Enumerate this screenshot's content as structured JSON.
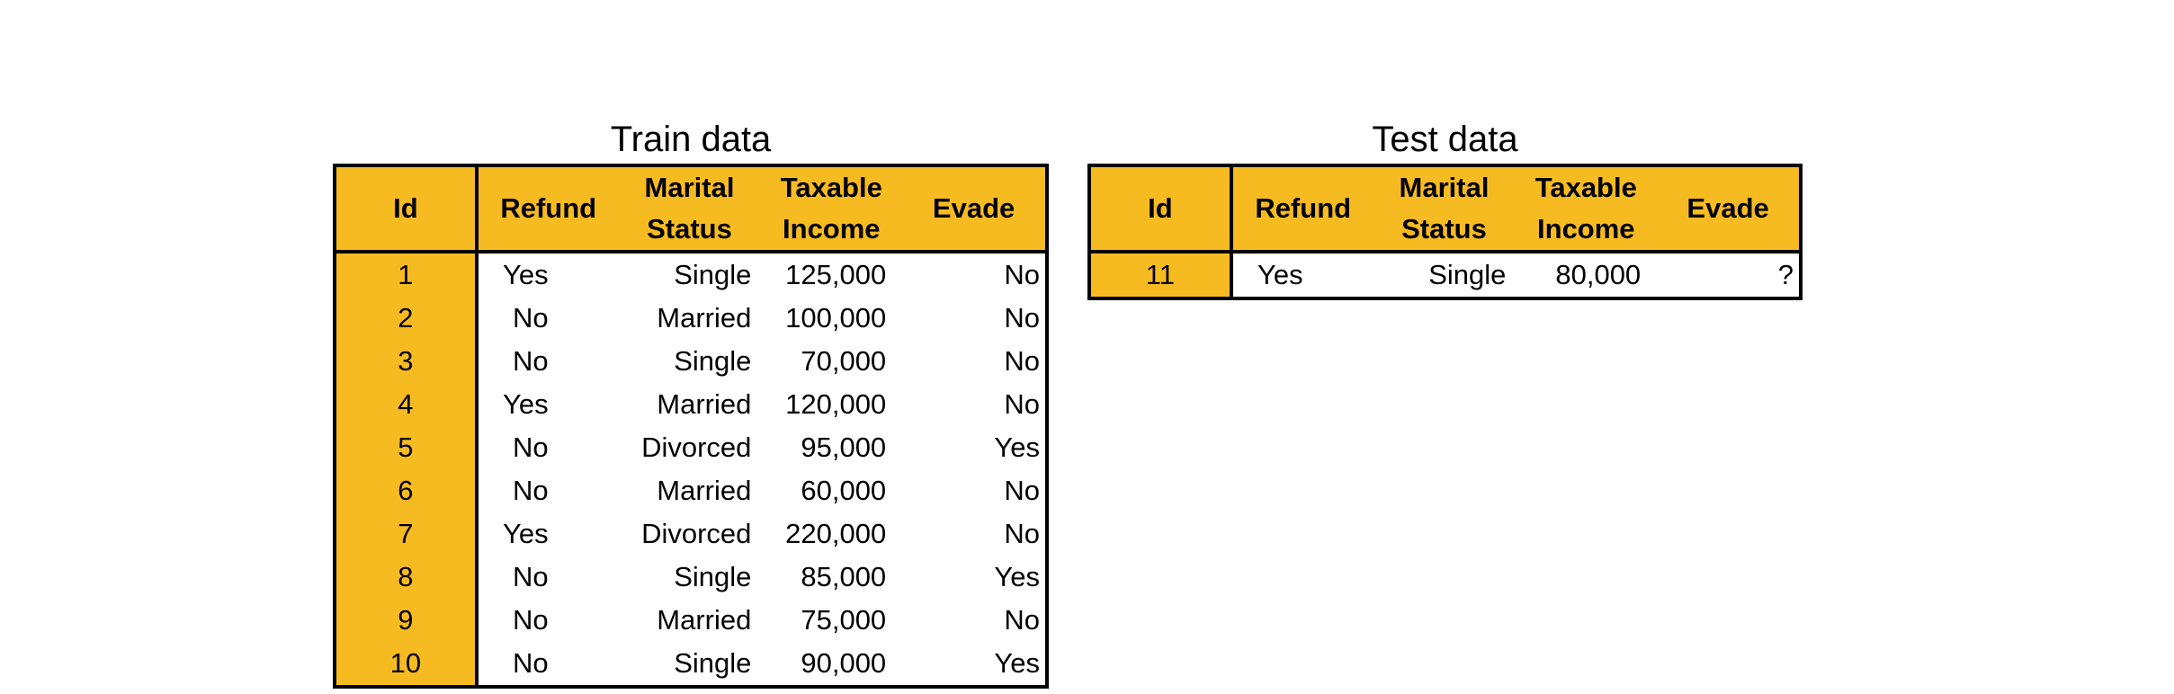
{
  "train": {
    "title": "Train data",
    "headers": {
      "id": "Id",
      "refund": "Refund",
      "marital_line1": "Marital",
      "marital_line2": "Status",
      "income_line1": "Taxable",
      "income_line2": "Income",
      "evade": "Evade"
    },
    "rows": [
      {
        "id": "1",
        "refund": "Yes",
        "marital": "Single",
        "income": "125,000",
        "evade": "No"
      },
      {
        "id": "2",
        "refund": "No",
        "marital": "Married",
        "income": "100,000",
        "evade": "No"
      },
      {
        "id": "3",
        "refund": "No",
        "marital": "Single",
        "income": "70,000",
        "evade": "No"
      },
      {
        "id": "4",
        "refund": "Yes",
        "marital": "Married",
        "income": "120,000",
        "evade": "No"
      },
      {
        "id": "5",
        "refund": "No",
        "marital": "Divorced",
        "income": "95,000",
        "evade": "Yes"
      },
      {
        "id": "6",
        "refund": "No",
        "marital": "Married",
        "income": "60,000",
        "evade": "No"
      },
      {
        "id": "7",
        "refund": "Yes",
        "marital": "Divorced",
        "income": "220,000",
        "evade": "No"
      },
      {
        "id": "8",
        "refund": "No",
        "marital": "Single",
        "income": "85,000",
        "evade": "Yes"
      },
      {
        "id": "9",
        "refund": "No",
        "marital": "Married",
        "income": "75,000",
        "evade": "No"
      },
      {
        "id": "10",
        "refund": "No",
        "marital": "Single",
        "income": "90,000",
        "evade": "Yes"
      }
    ]
  },
  "test": {
    "title": "Test data",
    "headers": {
      "id": "Id",
      "refund": "Refund",
      "marital_line1": "Marital",
      "marital_line2": "Status",
      "income_line1": "Taxable",
      "income_line2": "Income",
      "evade": "Evade"
    },
    "rows": [
      {
        "id": "11",
        "refund": "Yes",
        "marital": "Single",
        "income": "80,000",
        "evade": "?"
      }
    ]
  },
  "colors": {
    "header_fill": "#F7BB22",
    "border": "#000000"
  }
}
